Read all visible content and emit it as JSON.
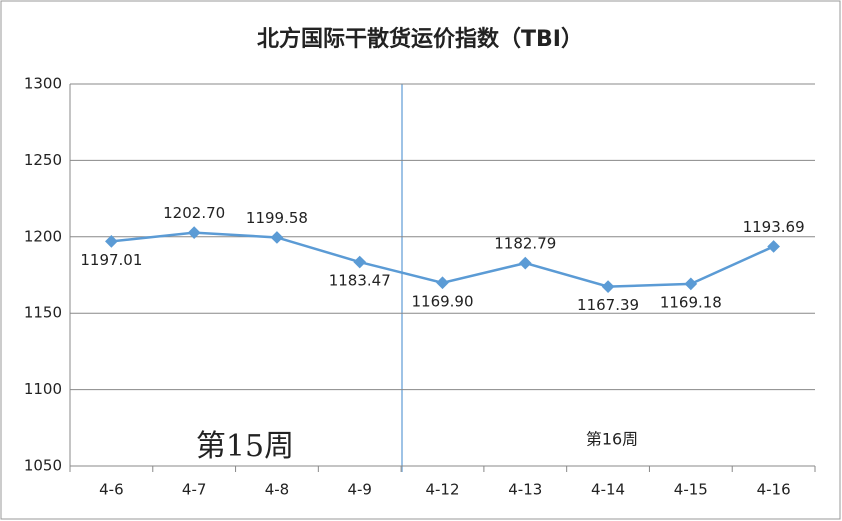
{
  "chart_data": {
    "type": "line",
    "title": "北方国际干散货运价指数（TBI）",
    "categories": [
      "4-6",
      "4-7",
      "4-8",
      "4-9",
      "4-12",
      "4-13",
      "4-14",
      "4-15",
      "4-16"
    ],
    "series": [
      {
        "name": "TBI",
        "color": "#5b9bd5",
        "values": [
          1197.01,
          1202.7,
          1199.58,
          1183.47,
          1169.9,
          1182.79,
          1167.39,
          1169.18,
          1193.69
        ],
        "value_labels": [
          "1197.01",
          "1202.70",
          "1199.58",
          "1183.47",
          "1169.90",
          "1182.79",
          "1167.39",
          "1169.18",
          "1193.69"
        ]
      }
    ],
    "ylim": [
      1050,
      1300
    ],
    "yticks": [
      1050,
      1100,
      1150,
      1200,
      1250,
      1300
    ],
    "grid": true,
    "annotations": [
      "第15周",
      "第16周"
    ]
  }
}
